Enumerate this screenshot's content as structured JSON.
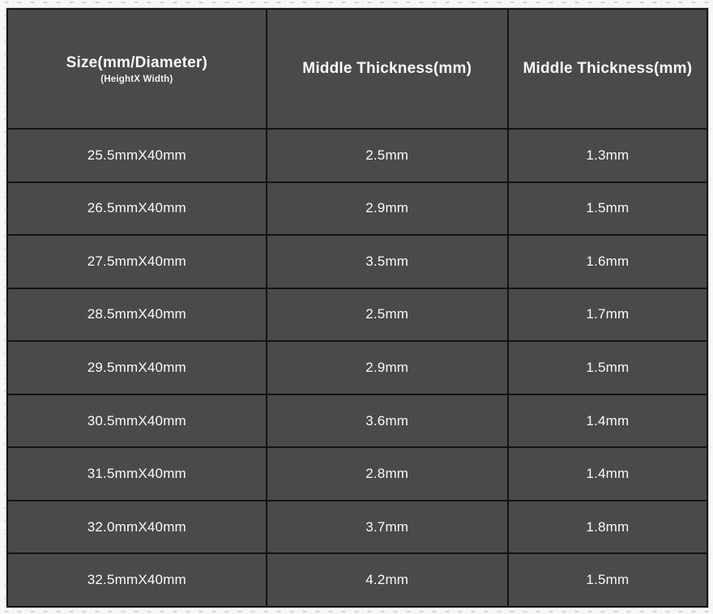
{
  "page": {
    "background_color": "#f6f6f7",
    "dot_pattern_color": "#d8d8db"
  },
  "table": {
    "cell_background": "#4a4a4b",
    "border_color": "#141414",
    "text_color": "#fafafa",
    "columns": [
      {
        "title": "Size(mm/Diameter)",
        "subtitle": "(HeightX Width)"
      },
      {
        "title": "Middle Thickness(mm)"
      },
      {
        "title": "Middle Thickness(mm)"
      }
    ],
    "rows": [
      {
        "size": "25.5mmX40mm",
        "middle_thickness_1": "2.5mm",
        "middle_thickness_2": "1.3mm"
      },
      {
        "size": "26.5mmX40mm",
        "middle_thickness_1": "2.9mm",
        "middle_thickness_2": "1.5mm"
      },
      {
        "size": "27.5mmX40mm",
        "middle_thickness_1": "3.5mm",
        "middle_thickness_2": "1.6mm"
      },
      {
        "size": "28.5mmX40mm",
        "middle_thickness_1": "2.5mm",
        "middle_thickness_2": "1.7mm"
      },
      {
        "size": "29.5mmX40mm",
        "middle_thickness_1": "2.9mm",
        "middle_thickness_2": "1.5mm"
      },
      {
        "size": "30.5mmX40mm",
        "middle_thickness_1": "3.6mm",
        "middle_thickness_2": "1.4mm"
      },
      {
        "size": "31.5mmX40mm",
        "middle_thickness_1": "2.8mm",
        "middle_thickness_2": "1.4mm"
      },
      {
        "size": "32.0mmX40mm",
        "middle_thickness_1": "3.7mm",
        "middle_thickness_2": "1.8mm"
      },
      {
        "size": "32.5mmX40mm",
        "middle_thickness_1": "4.2mm",
        "middle_thickness_2": "1.5mm"
      }
    ]
  }
}
